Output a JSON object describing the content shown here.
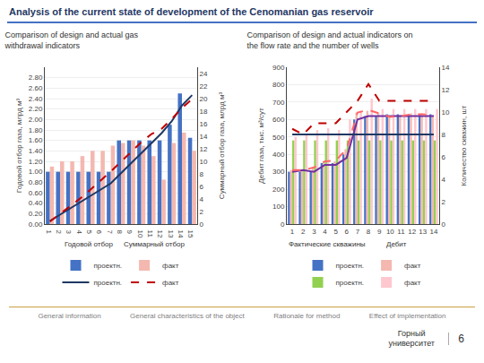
{
  "title": "Analysis of the current state of development of the Cenomanian gas reservoir",
  "annotations": [
    "General information",
    "General characteristics of the object",
    "Rationale for method",
    "Effect of implementation",
    "Горный\nуниверситет",
    "6"
  ],
  "chart_data": [
    {
      "type": "bar",
      "title": "Comparison of design and actual gas\nwithdrawal indicators",
      "ylabel": "Годовой отбор газа, млрд м³",
      "y2label": "Суммарный отбор газа, млрд м³",
      "annotations": [
        "Годовой отбор",
        "Суммарный отбор"
      ],
      "categories": [
        "1",
        "2",
        "3",
        "4",
        "5",
        "6",
        "7",
        "8",
        "9",
        "10",
        "11",
        "12",
        "13",
        "14",
        "15"
      ],
      "series": [
        {
          "name": "проектн.",
          "color": "#4472c4",
          "values": [
            1.0,
            1.0,
            1.0,
            1.0,
            1.0,
            1.0,
            1.0,
            1.6,
            1.6,
            1.6,
            1.6,
            1.6,
            1.9,
            2.5,
            1.65
          ]
        },
        {
          "name": "факт",
          "color": "#f4b8b0",
          "values": [
            1.1,
            1.2,
            1.2,
            1.3,
            1.4,
            1.4,
            1.5,
            1.55,
            1.6,
            1.5,
            1.3,
            0.85,
            1.55,
            1.75,
            1.4
          ]
        },
        {
          "name": "проектн.",
          "type": "line",
          "axis": "y2",
          "color": "#1f3864",
          "line_style": "solid",
          "values": [
            0.5,
            1.5,
            2.5,
            3.5,
            4.5,
            5.5,
            6.5,
            8.1,
            9.7,
            11.3,
            12.9,
            14.5,
            16.4,
            18.9,
            20.55
          ]
        },
        {
          "name": "факт",
          "type": "line",
          "axis": "y2",
          "color": "#c00000",
          "line_style": "dashed",
          "values": [
            0.4,
            1.6,
            2.8,
            4.1,
            5.5,
            6.9,
            8.4,
            9.95,
            11.55,
            13.05,
            14.35,
            15.2,
            16.75,
            18.5,
            19.9
          ]
        }
      ],
      "ylim": [
        0,
        3.0
      ],
      "yticks": [
        {
          "value": 0.0,
          "label": "0.00"
        },
        {
          "value": 0.2,
          "label": "0.20"
        },
        {
          "value": 0.4,
          "label": "0.40"
        },
        {
          "value": 0.6,
          "label": "0.60"
        },
        {
          "value": 0.8,
          "label": "0.80"
        },
        {
          "value": 1.0,
          "label": "1.00"
        },
        {
          "value": 1.2,
          "label": "1.20"
        },
        {
          "value": 1.4,
          "label": "1.40"
        },
        {
          "value": 1.6,
          "label": "1.60"
        },
        {
          "value": 1.8,
          "label": "1.80"
        },
        {
          "value": 2.0,
          "label": "2.00"
        },
        {
          "value": 2.2,
          "label": "2.20"
        },
        {
          "value": 2.4,
          "label": "2.40"
        },
        {
          "value": 2.6,
          "label": "2.60"
        },
        {
          "value": 2.8,
          "label": "2.80"
        }
      ],
      "y2lim": [
        0,
        25
      ],
      "y2ticks": [
        0,
        2,
        4,
        6,
        8,
        10,
        12,
        14,
        16,
        18,
        20,
        22,
        24
      ],
      "grid": true,
      "legend": "bottom"
    },
    {
      "type": "bar",
      "title": "Comparison of design and actual indicators on\nthe flow rate and the number of wells",
      "ylabel": "Дебит газа, тыс. м³/сут",
      "y2label": "Количество скважин, шт",
      "annotations": [
        "Фактические скважины",
        "Дебит"
      ],
      "categories": [
        "1",
        "2",
        "3",
        "4",
        "5",
        "6",
        "7",
        "8",
        "9",
        "10",
        "11",
        "12",
        "13",
        "14"
      ],
      "series": [
        {
          "name": "проектн.",
          "color": "#4472c4",
          "values": [
            300,
            300,
            300,
            350,
            350,
            400,
            600,
            620,
            620,
            630,
            630,
            630,
            630,
            630
          ]
        },
        {
          "name": "факт",
          "color": "#f4b8b0",
          "values": [
            310,
            310,
            320,
            360,
            360,
            430,
            640,
            650,
            640,
            620,
            625,
            635,
            635,
            625
          ]
        },
        {
          "name": "проектн.",
          "color": "#92d050",
          "values": [
            480,
            480,
            480,
            480,
            480,
            480,
            480,
            480,
            480,
            480,
            480,
            480,
            480,
            480
          ]
        },
        {
          "name": "факт",
          "color": "#ffc7ce",
          "values": [
            500,
            510,
            540,
            550,
            540,
            600,
            650,
            720,
            660,
            660,
            660,
            660,
            660,
            660
          ]
        },
        {
          "type": "line",
          "axis": "y2",
          "color": "#1f3864",
          "line_style": "solid",
          "values": [
            8,
            8,
            8,
            8,
            8,
            8,
            8,
            8,
            8,
            8,
            8,
            8,
            8,
            8
          ]
        },
        {
          "type": "line",
          "axis": "y2",
          "color": "#c00000",
          "line_style": "dashed",
          "values": [
            8.5,
            8,
            9,
            9,
            9,
            10,
            11,
            12.5,
            11,
            11,
            11,
            11,
            11,
            11
          ]
        },
        {
          "type": "line",
          "color": "#7030a0",
          "line_style": "solid",
          "values": [
            300,
            310,
            300,
            340,
            340,
            380,
            600,
            620,
            620,
            620,
            620,
            620,
            620,
            620
          ]
        },
        {
          "type": "line",
          "color": "#ff6666",
          "line_style": "dashed",
          "values": [
            310,
            310,
            325,
            360,
            365,
            430,
            640,
            655,
            635,
            615,
            620,
            630,
            630,
            622
          ]
        }
      ],
      "ylim": [
        0,
        900
      ],
      "yticks": [
        0,
        100,
        200,
        300,
        400,
        500,
        600,
        700,
        800,
        900
      ],
      "y2lim": [
        0,
        14
      ],
      "y2ticks": [
        0,
        2,
        4,
        6,
        8,
        10,
        12,
        14
      ],
      "grid": true,
      "legend": "bottom"
    }
  ]
}
